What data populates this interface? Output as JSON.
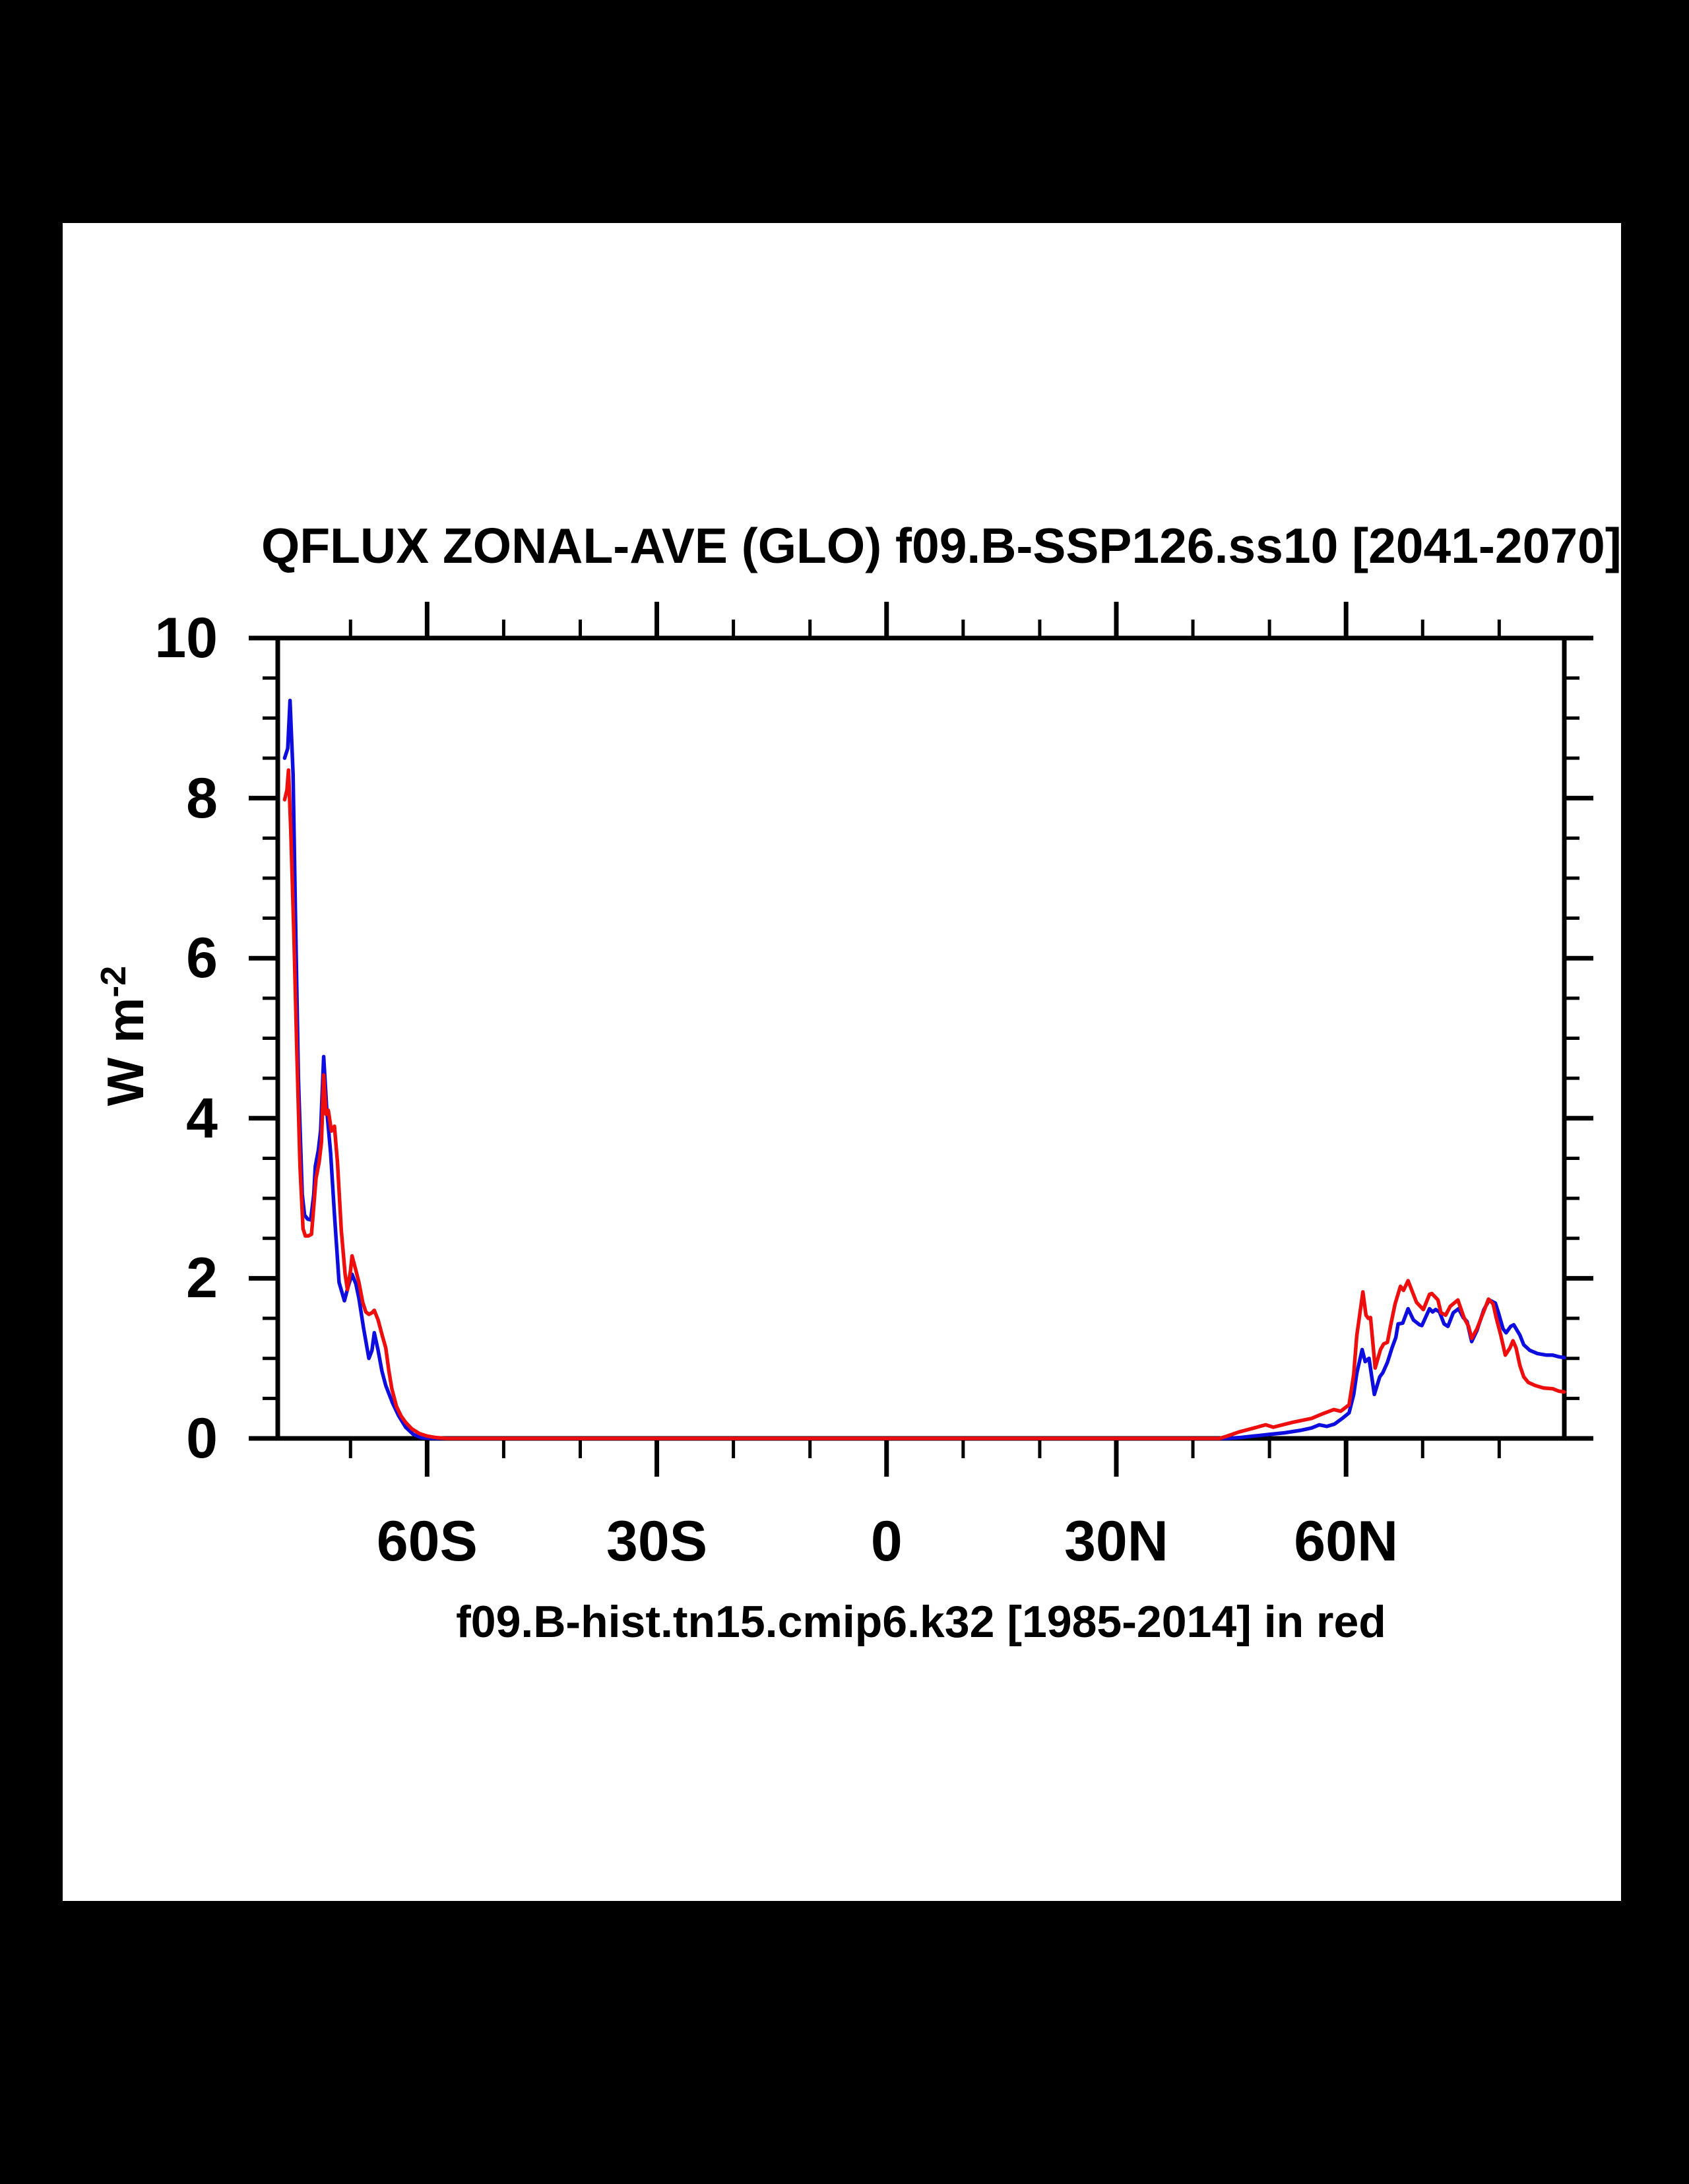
{
  "window": {
    "background": "#000000",
    "panel_background": "#ffffff"
  },
  "chart_data": {
    "type": "line",
    "title": "QFLUX ZONAL-AVE (GLO) f09.B-SSP126.ss10 [2041-2070]",
    "footer": "f09.B-hist.tn15.cmip6.k32 [1985-2014] in red",
    "ylabel": {
      "base": "W m",
      "exponent": "-2"
    },
    "xlabel": "",
    "ylim": [
      0,
      10
    ],
    "xlim_lat": [
      -79.5,
      88.5
    ],
    "grid": false,
    "legend": "none",
    "axis_color": "#000000",
    "y_major_ticks": [
      {
        "value": 10,
        "label": "10"
      },
      {
        "value": 8,
        "label": "8"
      },
      {
        "value": 6,
        "label": "6"
      },
      {
        "value": 4,
        "label": "4"
      },
      {
        "value": 2,
        "label": "2"
      },
      {
        "value": 0,
        "label": "0"
      }
    ],
    "y_minor_tick_values": [
      0.5,
      1,
      1.5,
      2.5,
      3,
      3.5,
      4.5,
      5,
      5.5,
      6.5,
      7,
      7.5,
      8.5,
      9,
      9.5
    ],
    "x_major_ticks": [
      {
        "lat": -60,
        "label": "60S"
      },
      {
        "lat": -30,
        "label": "30S"
      },
      {
        "lat": 0,
        "label": "0"
      },
      {
        "lat": 30,
        "label": "30N"
      },
      {
        "lat": 60,
        "label": "60N"
      }
    ],
    "x_minor_ticks_lat": [
      -70,
      -50,
      -40,
      -20,
      -10,
      10,
      20,
      40,
      50,
      70,
      80
    ],
    "series": [
      {
        "name": "f09.B-SSP126.ss10 [2041-2070]",
        "color": "#0d0de0",
        "points": [
          [
            -78.6,
            8.5
          ],
          [
            -78.2,
            8.62
          ],
          [
            -77.9,
            9.22
          ],
          [
            -77.5,
            8.3
          ],
          [
            -77.2,
            6.6
          ],
          [
            -76.8,
            4.5
          ],
          [
            -76.3,
            3.05
          ],
          [
            -76.0,
            2.79
          ],
          [
            -75.6,
            2.74
          ],
          [
            -75.2,
            2.73
          ],
          [
            -74.8,
            3.05
          ],
          [
            -74.6,
            3.4
          ],
          [
            -74.2,
            3.6
          ],
          [
            -73.9,
            3.85
          ],
          [
            -73.5,
            4.77
          ],
          [
            -73.1,
            4.1
          ],
          [
            -72.6,
            3.57
          ],
          [
            -72.1,
            2.8
          ],
          [
            -71.5,
            1.95
          ],
          [
            -70.8,
            1.72
          ],
          [
            -70.3,
            1.9
          ],
          [
            -69.8,
            2.05
          ],
          [
            -69.3,
            1.93
          ],
          [
            -68.9,
            1.75
          ],
          [
            -68.3,
            1.38
          ],
          [
            -67.6,
            1.0
          ],
          [
            -67.2,
            1.1
          ],
          [
            -66.9,
            1.32
          ],
          [
            -66.4,
            1.1
          ],
          [
            -65.9,
            0.84
          ],
          [
            -65.4,
            0.66
          ],
          [
            -64.5,
            0.44
          ],
          [
            -63.7,
            0.28
          ],
          [
            -62.8,
            0.14
          ],
          [
            -61.8,
            0.05
          ],
          [
            -60.8,
            0.01
          ],
          [
            -59.5,
            0.0
          ],
          [
            -55,
            0
          ],
          [
            -50,
            0
          ],
          [
            -45,
            0
          ],
          [
            -40,
            0
          ],
          [
            -35,
            0
          ],
          [
            -30,
            0
          ],
          [
            -25,
            0
          ],
          [
            -20,
            0
          ],
          [
            -15,
            0
          ],
          [
            -10,
            0
          ],
          [
            -5,
            0
          ],
          [
            0,
            0
          ],
          [
            5,
            0
          ],
          [
            10,
            0
          ],
          [
            15,
            0
          ],
          [
            20,
            0
          ],
          [
            25,
            0
          ],
          [
            30,
            0
          ],
          [
            35,
            0
          ],
          [
            40,
            0
          ],
          [
            44.5,
            0.0
          ],
          [
            46,
            0.01
          ],
          [
            48,
            0.03
          ],
          [
            50,
            0.05
          ],
          [
            52,
            0.07
          ],
          [
            54,
            0.1
          ],
          [
            55.5,
            0.13
          ],
          [
            56.5,
            0.17
          ],
          [
            57.5,
            0.15
          ],
          [
            58.5,
            0.18
          ],
          [
            59.5,
            0.25
          ],
          [
            60.4,
            0.32
          ],
          [
            61.0,
            0.55
          ],
          [
            61.4,
            0.81
          ],
          [
            62.1,
            1.11
          ],
          [
            62.5,
            0.96
          ],
          [
            63.0,
            1.0
          ],
          [
            63.7,
            0.55
          ],
          [
            64.4,
            0.77
          ],
          [
            64.8,
            0.82
          ],
          [
            65.4,
            0.95
          ],
          [
            66.0,
            1.13
          ],
          [
            66.5,
            1.26
          ],
          [
            66.8,
            1.43
          ],
          [
            67.4,
            1.44
          ],
          [
            68.1,
            1.62
          ],
          [
            68.8,
            1.48
          ],
          [
            69.6,
            1.42
          ],
          [
            69.9,
            1.41
          ],
          [
            70.9,
            1.62
          ],
          [
            71.3,
            1.58
          ],
          [
            71.7,
            1.61
          ],
          [
            72.2,
            1.58
          ],
          [
            72.8,
            1.43
          ],
          [
            73.3,
            1.4
          ],
          [
            74.0,
            1.57
          ],
          [
            74.7,
            1.62
          ],
          [
            75.3,
            1.51
          ],
          [
            75.8,
            1.46
          ],
          [
            76.4,
            1.21
          ],
          [
            77.1,
            1.35
          ],
          [
            78.0,
            1.61
          ],
          [
            78.7,
            1.73
          ],
          [
            79.5,
            1.69
          ],
          [
            79.9,
            1.57
          ],
          [
            80.5,
            1.37
          ],
          [
            80.9,
            1.32
          ],
          [
            81.5,
            1.4
          ],
          [
            81.9,
            1.42
          ],
          [
            82.7,
            1.29
          ],
          [
            83.2,
            1.17
          ],
          [
            84.0,
            1.1
          ],
          [
            85.0,
            1.06
          ],
          [
            86.2,
            1.04
          ],
          [
            87.0,
            1.04
          ],
          [
            87.8,
            1.02
          ],
          [
            88.5,
            1.01
          ]
        ]
      },
      {
        "name": "f09.B-hist.tn15.cmip6.k32 [1985-2014]",
        "color": "#ee0e0e",
        "points": [
          [
            -78.6,
            7.98
          ],
          [
            -78.3,
            8.1
          ],
          [
            -78.1,
            8.35
          ],
          [
            -77.8,
            7.6
          ],
          [
            -77.4,
            6.3
          ],
          [
            -77.0,
            4.8
          ],
          [
            -76.6,
            3.4
          ],
          [
            -76.2,
            2.62
          ],
          [
            -75.9,
            2.53
          ],
          [
            -75.5,
            2.53
          ],
          [
            -75.1,
            2.55
          ],
          [
            -74.8,
            2.9
          ],
          [
            -74.5,
            3.25
          ],
          [
            -74.1,
            3.45
          ],
          [
            -73.8,
            3.7
          ],
          [
            -73.5,
            4.54
          ],
          [
            -73.2,
            4.05
          ],
          [
            -72.9,
            4.1
          ],
          [
            -72.5,
            3.84
          ],
          [
            -72.1,
            3.9
          ],
          [
            -71.7,
            3.45
          ],
          [
            -71.2,
            2.6
          ],
          [
            -70.7,
            2.05
          ],
          [
            -70.4,
            1.86
          ],
          [
            -70.0,
            2.1
          ],
          [
            -69.8,
            2.28
          ],
          [
            -69.3,
            2.1
          ],
          [
            -68.9,
            1.95
          ],
          [
            -68.4,
            1.7
          ],
          [
            -68.0,
            1.58
          ],
          [
            -67.6,
            1.55
          ],
          [
            -67.2,
            1.57
          ],
          [
            -66.9,
            1.6
          ],
          [
            -66.4,
            1.48
          ],
          [
            -65.9,
            1.3
          ],
          [
            -65.4,
            1.13
          ],
          [
            -65.0,
            0.85
          ],
          [
            -64.6,
            0.62
          ],
          [
            -64.0,
            0.4
          ],
          [
            -63.4,
            0.28
          ],
          [
            -62.8,
            0.2
          ],
          [
            -62.0,
            0.12
          ],
          [
            -61.0,
            0.06
          ],
          [
            -60.0,
            0.03
          ],
          [
            -58.8,
            0.01
          ],
          [
            -57.5,
            0.0
          ],
          [
            -55,
            0
          ],
          [
            -50,
            0
          ],
          [
            -45,
            0
          ],
          [
            -40,
            0
          ],
          [
            -35,
            0
          ],
          [
            -30,
            0
          ],
          [
            -25,
            0
          ],
          [
            -20,
            0
          ],
          [
            -15,
            0
          ],
          [
            -10,
            0
          ],
          [
            -5,
            0
          ],
          [
            0,
            0
          ],
          [
            5,
            0
          ],
          [
            10,
            0
          ],
          [
            15,
            0
          ],
          [
            20,
            0
          ],
          [
            25,
            0
          ],
          [
            30,
            0
          ],
          [
            35,
            0
          ],
          [
            40,
            0
          ],
          [
            43.5,
            0.0
          ],
          [
            44.5,
            0.03
          ],
          [
            46,
            0.08
          ],
          [
            48,
            0.13
          ],
          [
            49.5,
            0.17
          ],
          [
            50.5,
            0.14
          ],
          [
            53,
            0.2
          ],
          [
            55.5,
            0.25
          ],
          [
            57,
            0.31
          ],
          [
            58.4,
            0.36
          ],
          [
            59.3,
            0.34
          ],
          [
            60.4,
            0.42
          ],
          [
            61.0,
            0.8
          ],
          [
            61.4,
            1.28
          ],
          [
            62.2,
            1.83
          ],
          [
            62.6,
            1.54
          ],
          [
            62.9,
            1.5
          ],
          [
            63.2,
            1.51
          ],
          [
            63.8,
            0.88
          ],
          [
            64.5,
            1.11
          ],
          [
            64.9,
            1.18
          ],
          [
            65.4,
            1.2
          ],
          [
            65.8,
            1.4
          ],
          [
            66.4,
            1.68
          ],
          [
            67.1,
            1.9
          ],
          [
            67.5,
            1.85
          ],
          [
            68.1,
            1.97
          ],
          [
            68.8,
            1.8
          ],
          [
            69.2,
            1.7
          ],
          [
            69.8,
            1.64
          ],
          [
            70.1,
            1.61
          ],
          [
            70.9,
            1.8
          ],
          [
            71.2,
            1.81
          ],
          [
            72.0,
            1.73
          ],
          [
            72.4,
            1.57
          ],
          [
            73.0,
            1.54
          ],
          [
            73.6,
            1.65
          ],
          [
            74.6,
            1.73
          ],
          [
            75.4,
            1.51
          ],
          [
            76.0,
            1.4
          ],
          [
            76.4,
            1.25
          ],
          [
            77.1,
            1.37
          ],
          [
            78.0,
            1.59
          ],
          [
            78.6,
            1.74
          ],
          [
            79.2,
            1.68
          ],
          [
            79.6,
            1.51
          ],
          [
            80.2,
            1.29
          ],
          [
            80.8,
            1.04
          ],
          [
            81.4,
            1.13
          ],
          [
            81.8,
            1.22
          ],
          [
            82.2,
            1.13
          ],
          [
            82.7,
            0.91
          ],
          [
            83.2,
            0.77
          ],
          [
            83.8,
            0.7
          ],
          [
            84.7,
            0.66
          ],
          [
            85.8,
            0.63
          ],
          [
            87.0,
            0.62
          ],
          [
            87.8,
            0.59
          ],
          [
            88.5,
            0.58
          ]
        ]
      }
    ]
  }
}
